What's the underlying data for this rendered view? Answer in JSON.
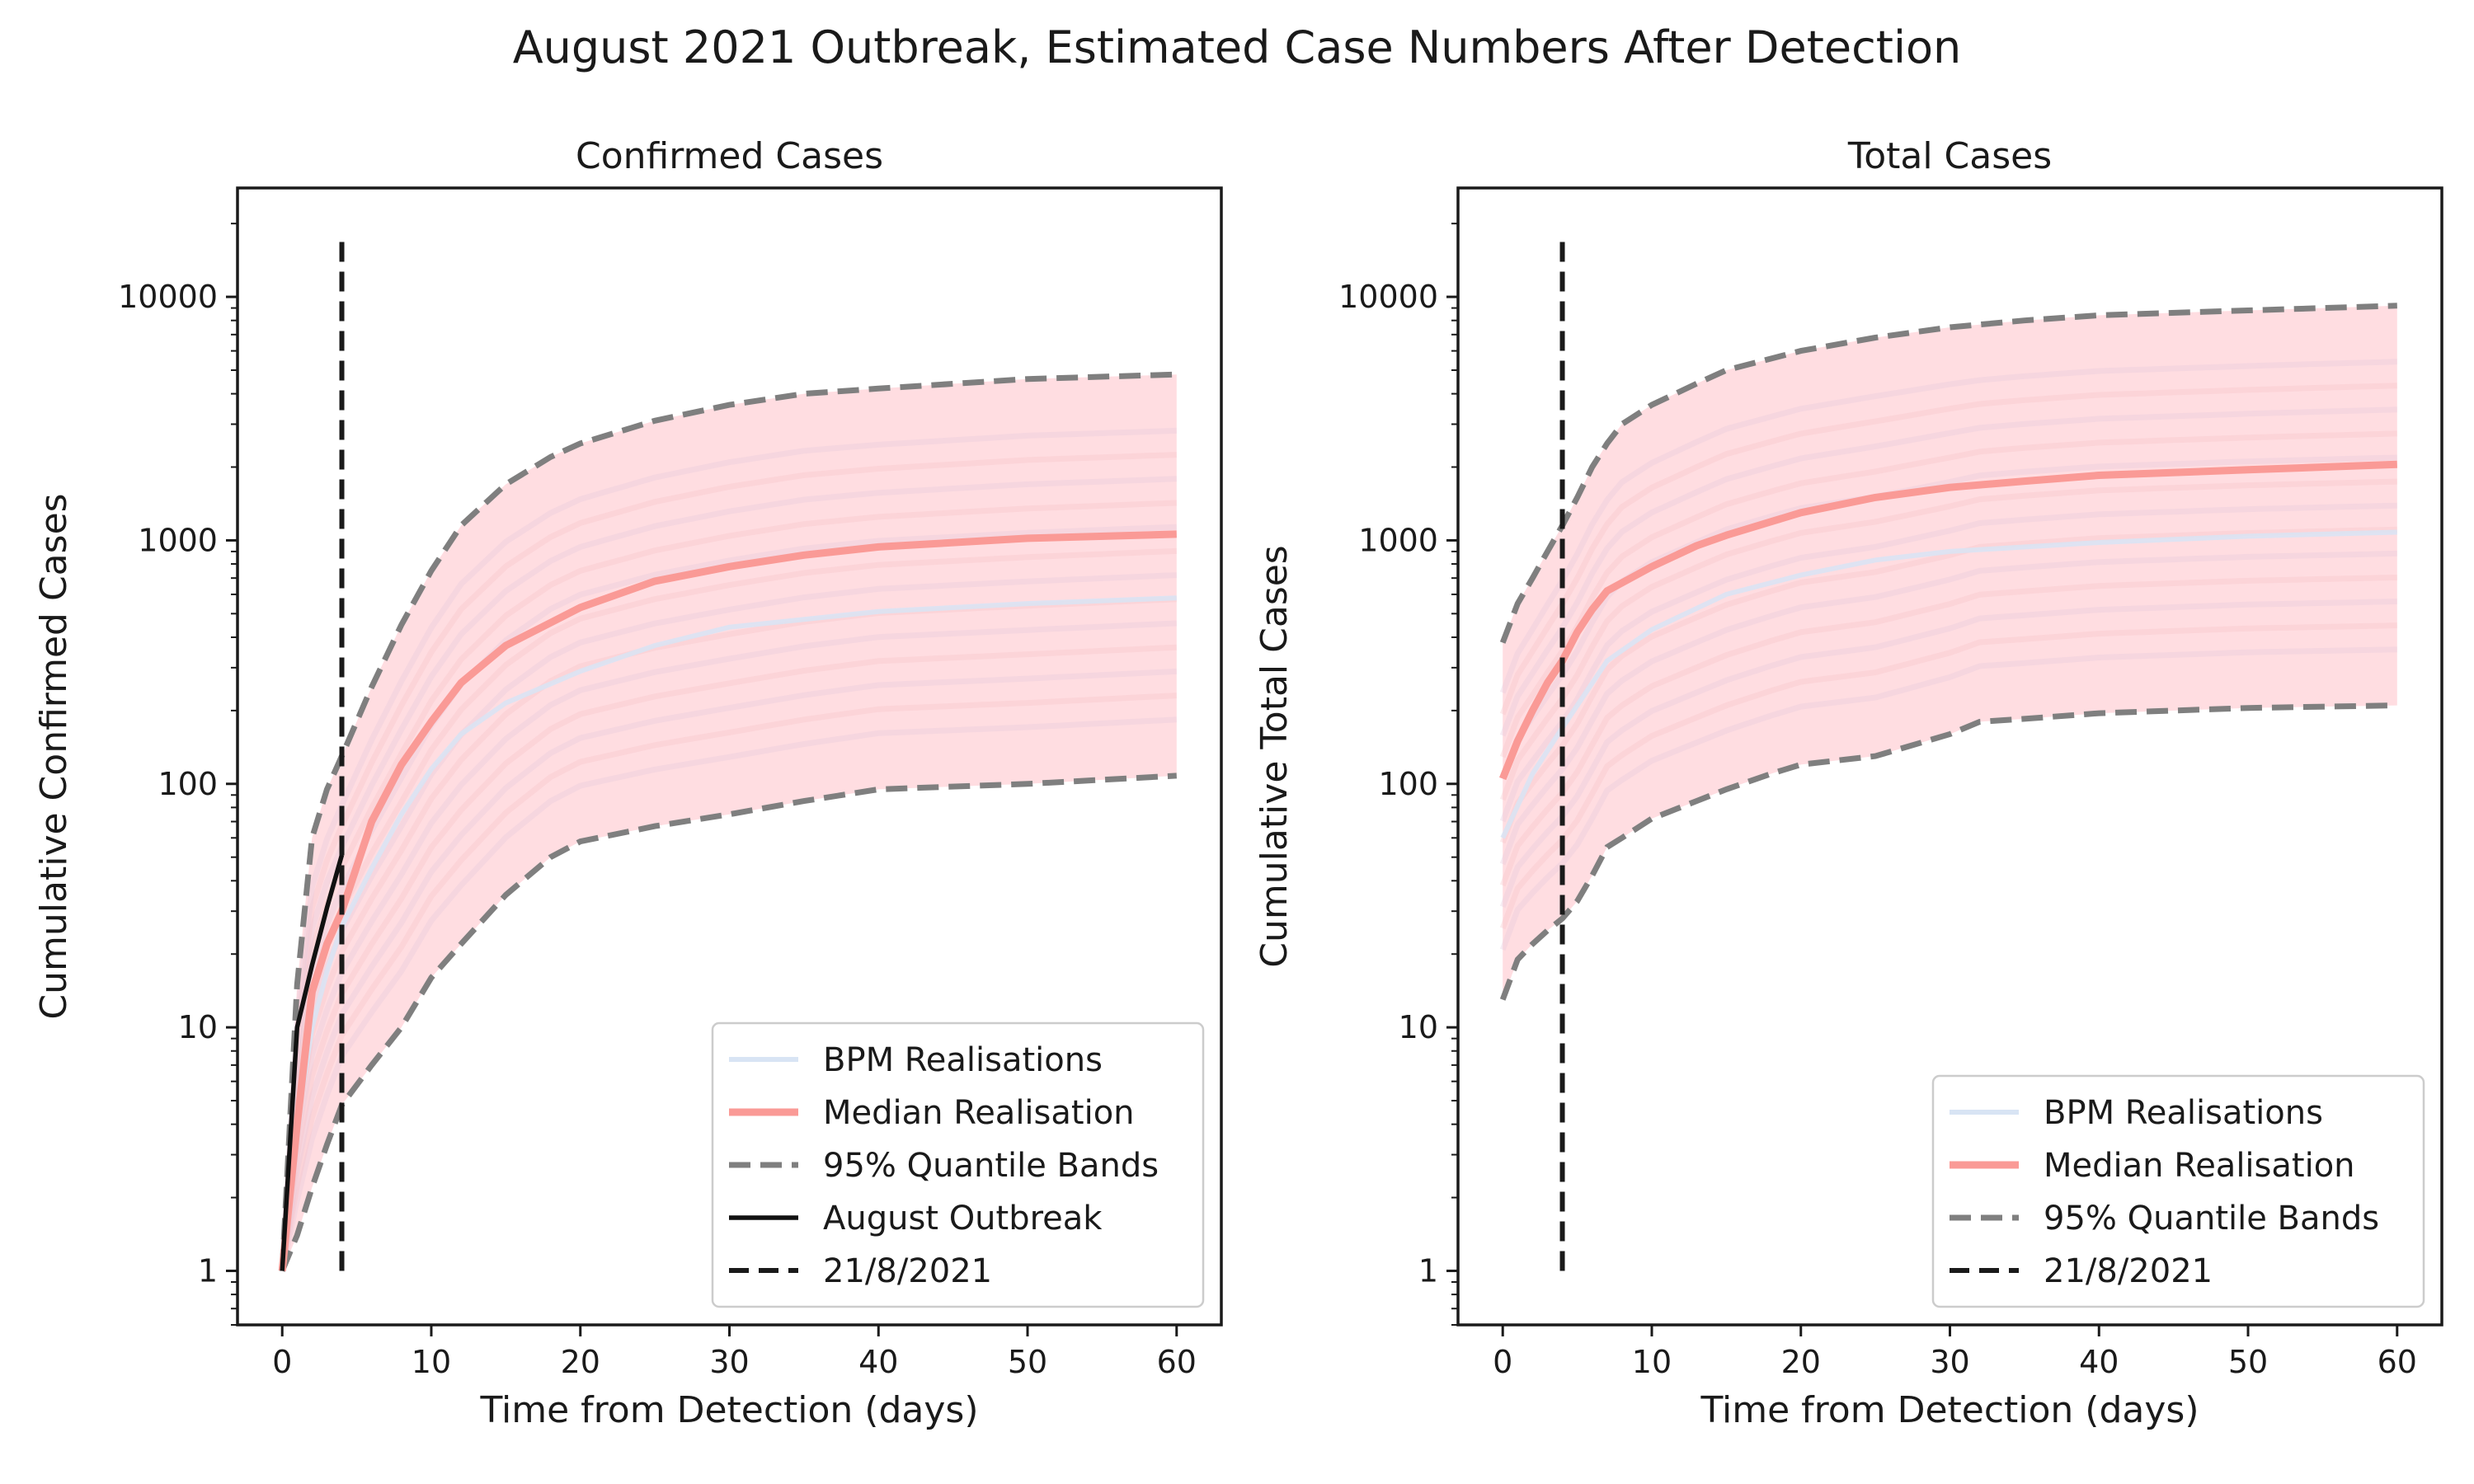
{
  "figure": {
    "title": "August 2021 Outbreak, Estimated Case Numbers After Detection"
  },
  "colors": {
    "realisations": "#d8e4f4",
    "band_fill": "#ffd0d6",
    "median": "#fa9a96",
    "quantile": "#7f7f7f",
    "outbreak": "#111111",
    "detection": "#1a1a1a"
  },
  "chart_data": [
    {
      "type": "line",
      "title": "Confirmed Cases",
      "xlabel": "Time from Detection (days)",
      "ylabel": "Cumulative Confirmed Cases",
      "xlim": [
        -3,
        63
      ],
      "ylim": [
        0.6,
        28000
      ],
      "yscale": "log",
      "xticks": [
        "0",
        "10",
        "20",
        "30",
        "40",
        "50",
        "60"
      ],
      "yticks": [
        "1",
        "10",
        "100",
        "1000",
        "10000"
      ],
      "grid": false,
      "legend": {
        "placement": "lower-right",
        "entries": [
          "BPM Realisations",
          "Median Realisation",
          "95% Quantile Bands",
          "August Outbreak",
          "21/8/2021"
        ]
      },
      "series": [
        {
          "name": "BPM Realisations",
          "style": "faint",
          "x": [
            0,
            1,
            2,
            3,
            4,
            6,
            8,
            10,
            12,
            15,
            20,
            25,
            30,
            40,
            50,
            60
          ],
          "y": [
            1,
            4,
            10,
            17,
            26,
            45,
            75,
            115,
            160,
            215,
            290,
            370,
            440,
            510,
            550,
            580
          ]
        },
        {
          "name": "Median Realisation",
          "style": "median",
          "x": [
            0,
            1,
            2,
            3,
            4,
            6,
            8,
            10,
            12,
            15,
            20,
            25,
            30,
            35,
            40,
            50,
            60
          ],
          "y": [
            1,
            4,
            14,
            22,
            30,
            70,
            120,
            180,
            260,
            370,
            530,
            680,
            780,
            870,
            940,
            1020,
            1060
          ]
        },
        {
          "name": "95% Quantile Bands",
          "style": "upper",
          "x": [
            0,
            1,
            2,
            3,
            4,
            6,
            8,
            10,
            12,
            15,
            18,
            20,
            25,
            30,
            35,
            40,
            50,
            60
          ],
          "y": [
            1,
            15,
            60,
            95,
            130,
            250,
            450,
            750,
            1150,
            1700,
            2200,
            2500,
            3100,
            3600,
            4000,
            4200,
            4600,
            4800
          ]
        },
        {
          "name": "95% Quantile Bands",
          "style": "lower",
          "x": [
            0,
            1,
            2,
            3,
            4,
            6,
            8,
            10,
            12,
            15,
            18,
            20,
            25,
            30,
            35,
            40,
            50,
            60
          ],
          "y": [
            1,
            1.4,
            2.2,
            3.3,
            4.8,
            7,
            10,
            16,
            22,
            35,
            50,
            58,
            67,
            75,
            85,
            95,
            100,
            108
          ]
        },
        {
          "name": "August Outbreak",
          "style": "observed",
          "x": [
            0,
            1,
            2,
            3,
            4
          ],
          "y": [
            1,
            10,
            18,
            31,
            51
          ]
        }
      ],
      "vline": {
        "name": "21/8/2021",
        "x": 4,
        "y": [
          1,
          17000
        ]
      }
    },
    {
      "type": "line",
      "title": "Total Cases",
      "xlabel": "Time from Detection (days)",
      "ylabel": "Cumulative Total Cases",
      "xlim": [
        -3,
        63
      ],
      "ylim": [
        0.6,
        28000
      ],
      "yscale": "log",
      "xticks": [
        "0",
        "10",
        "20",
        "30",
        "40",
        "50",
        "60"
      ],
      "yticks": [
        "1",
        "10",
        "100",
        "1000",
        "10000"
      ],
      "grid": false,
      "legend": {
        "placement": "lower-right",
        "entries": [
          "BPM Realisations",
          "Median Realisation",
          "95% Quantile Bands",
          "21/8/2021"
        ]
      },
      "series": [
        {
          "name": "BPM Realisations",
          "style": "faint",
          "x": [
            0,
            2,
            4,
            7,
            10,
            15,
            20,
            25,
            30,
            40,
            50,
            60
          ],
          "y": [
            60,
            110,
            170,
            320,
            430,
            600,
            720,
            830,
            900,
            980,
            1040,
            1080
          ]
        },
        {
          "name": "Median Realisation",
          "style": "median",
          "x": [
            0,
            1,
            2,
            3,
            4,
            5,
            6,
            7,
            10,
            13,
            15,
            20,
            25,
            30,
            35,
            40,
            50,
            60
          ],
          "y": [
            105,
            150,
            200,
            260,
            320,
            420,
            520,
            620,
            780,
            950,
            1050,
            1300,
            1500,
            1650,
            1750,
            1850,
            1950,
            2050
          ]
        },
        {
          "name": "95% Quantile Bands",
          "style": "upper",
          "x": [
            0,
            1,
            2,
            3,
            4,
            5,
            6,
            7,
            8,
            10,
            13,
            15,
            20,
            25,
            30,
            35,
            40,
            50,
            60
          ],
          "y": [
            380,
            550,
            700,
            900,
            1150,
            1500,
            2000,
            2500,
            3000,
            3600,
            4400,
            5000,
            6000,
            6800,
            7500,
            8000,
            8400,
            8800,
            9200
          ]
        },
        {
          "name": "95% Quantile Bands",
          "style": "lower",
          "x": [
            0,
            1,
            2,
            3,
            4,
            5,
            6,
            7,
            8,
            10,
            13,
            15,
            18,
            20,
            25,
            30,
            32,
            35,
            40,
            50,
            60
          ],
          "y": [
            13,
            19,
            22,
            25,
            28,
            33,
            42,
            55,
            60,
            72,
            85,
            95,
            110,
            120,
            130,
            160,
            180,
            185,
            195,
            205,
            210
          ]
        }
      ],
      "vline": {
        "name": "21/8/2021",
        "x": 4,
        "y": [
          1,
          17000
        ]
      }
    }
  ]
}
